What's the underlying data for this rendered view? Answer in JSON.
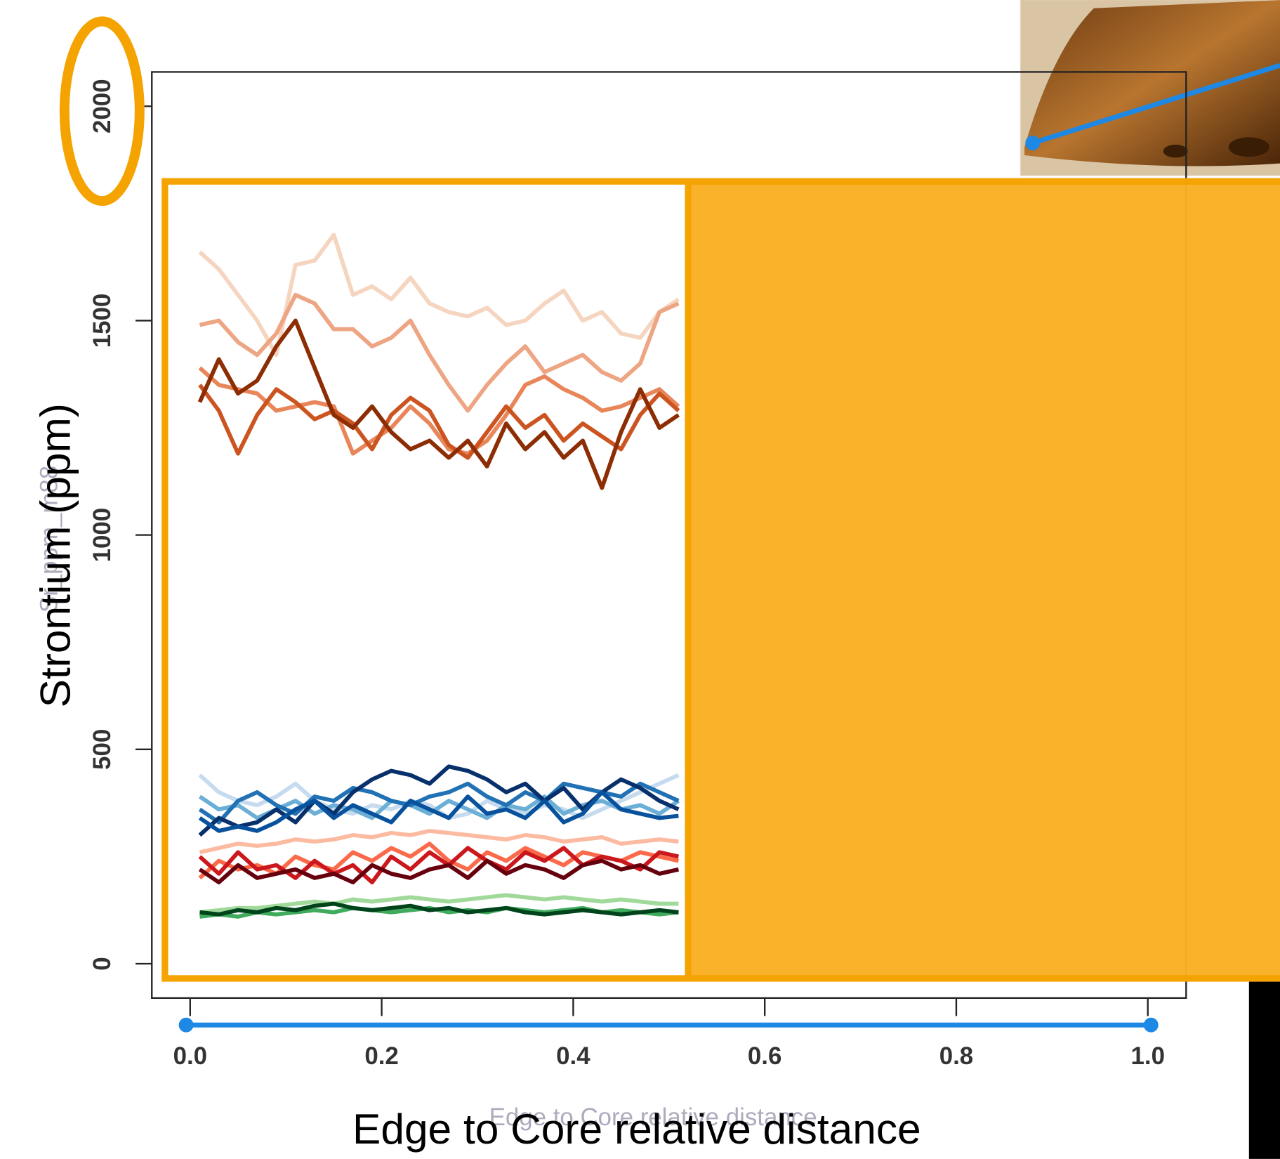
{
  "chart_data": {
    "type": "line",
    "xlabel": "Edge to Core relative distance",
    "ylabel": "Strontium (ppm)",
    "annotations": [
      "Sr_ppm_m88",
      "Edge to Core relative distance"
    ],
    "xlim": [
      -0.04,
      1.04
    ],
    "ylim": [
      -80,
      2080
    ],
    "xticks": [
      {
        "value": 0,
        "label": "0.0"
      },
      0.2,
      0.4,
      0.6,
      0.8,
      {
        "value": 1,
        "label": "1.0"
      }
    ],
    "yticks": [
      0,
      500,
      1000,
      1500,
      2000
    ],
    "x": [
      0.01,
      0.03,
      0.05,
      0.07,
      0.09,
      0.11,
      0.13,
      0.15,
      0.17,
      0.19,
      0.21,
      0.23,
      0.25,
      0.27,
      0.29,
      0.31,
      0.33,
      0.35,
      0.37,
      0.39,
      0.41,
      0.43,
      0.45,
      0.47,
      0.49,
      0.51
    ],
    "series": [
      {
        "color": "#f6d5c0",
        "values": [
          1660,
          1620,
          1560,
          1500,
          1420,
          1630,
          1640,
          1700,
          1560,
          1580,
          1550,
          1600,
          1540,
          1520,
          1510,
          1530,
          1490,
          1500,
          1540,
          1570,
          1500,
          1520,
          1470,
          1460,
          1520,
          1550
        ]
      },
      {
        "color": "#eea583",
        "values": [
          1490,
          1500,
          1450,
          1420,
          1470,
          1560,
          1540,
          1480,
          1480,
          1440,
          1460,
          1500,
          1420,
          1350,
          1290,
          1350,
          1400,
          1440,
          1380,
          1400,
          1420,
          1380,
          1360,
          1400,
          1520,
          1540
        ]
      },
      {
        "color": "#e8865a",
        "values": [
          1390,
          1350,
          1340,
          1330,
          1290,
          1300,
          1310,
          1300,
          1190,
          1220,
          1250,
          1300,
          1260,
          1200,
          1190,
          1220,
          1280,
          1350,
          1370,
          1340,
          1320,
          1290,
          1300,
          1320,
          1340,
          1300
        ]
      },
      {
        "color": "#cc5420",
        "values": [
          1350,
          1290,
          1190,
          1280,
          1340,
          1310,
          1270,
          1290,
          1260,
          1200,
          1280,
          1320,
          1290,
          1210,
          1180,
          1240,
          1300,
          1250,
          1280,
          1220,
          1260,
          1230,
          1200,
          1280,
          1330,
          1290
        ]
      },
      {
        "color": "#8c2d04",
        "values": [
          1310,
          1410,
          1330,
          1360,
          1440,
          1500,
          1390,
          1280,
          1250,
          1300,
          1240,
          1200,
          1220,
          1180,
          1220,
          1160,
          1260,
          1200,
          1240,
          1180,
          1220,
          1110,
          1240,
          1340,
          1250,
          1280
        ]
      },
      {
        "color": "#c6dbef",
        "values": [
          440,
          400,
          380,
          370,
          390,
          420,
          380,
          360,
          350,
          370,
          360,
          380,
          370,
          340,
          350,
          380,
          360,
          350,
          370,
          360,
          340,
          360,
          380,
          400,
          420,
          440
        ]
      },
      {
        "color": "#6baed6",
        "values": [
          390,
          360,
          370,
          340,
          360,
          380,
          350,
          370,
          360,
          340,
          380,
          370,
          350,
          380,
          360,
          340,
          370,
          360,
          390,
          350,
          370,
          380,
          360,
          370,
          350,
          380
        ]
      },
      {
        "color": "#2171b5",
        "values": [
          360,
          330,
          380,
          400,
          370,
          350,
          390,
          380,
          410,
          400,
          380,
          370,
          390,
          400,
          420,
          390,
          370,
          400,
          380,
          420,
          410,
          400,
          390,
          420,
          400,
          380
        ]
      },
      {
        "color": "#08306b",
        "values": [
          300,
          340,
          320,
          330,
          360,
          330,
          380,
          350,
          400,
          430,
          450,
          440,
          420,
          460,
          450,
          430,
          400,
          420,
          380,
          410,
          360,
          400,
          430,
          410,
          380,
          360
        ]
      },
      {
        "color": "#08519c",
        "values": [
          340,
          310,
          320,
          310,
          330,
          360,
          380,
          340,
          370,
          350,
          330,
          380,
          360,
          340,
          390,
          350,
          360,
          340,
          380,
          330,
          350,
          400,
          360,
          350,
          340,
          345
        ]
      },
      {
        "color": "#fcbba1",
        "values": [
          260,
          270,
          280,
          275,
          280,
          290,
          285,
          290,
          300,
          295,
          305,
          300,
          310,
          305,
          300,
          295,
          290,
          300,
          295,
          285,
          290,
          295,
          280,
          285,
          290,
          285
        ]
      },
      {
        "color": "#fb6a4a",
        "values": [
          200,
          240,
          220,
          230,
          210,
          250,
          230,
          220,
          260,
          240,
          270,
          250,
          280,
          240,
          220,
          260,
          240,
          270,
          250,
          230,
          260,
          250,
          240,
          260,
          250,
          240
        ]
      },
      {
        "color": "#cb181d",
        "values": [
          250,
          210,
          260,
          220,
          230,
          200,
          240,
          210,
          230,
          190,
          250,
          220,
          260,
          230,
          270,
          240,
          220,
          260,
          240,
          270,
          230,
          250,
          240,
          220,
          260,
          250
        ]
      },
      {
        "color": "#67000d",
        "values": [
          220,
          190,
          230,
          200,
          210,
          220,
          200,
          210,
          190,
          230,
          210,
          200,
          220,
          230,
          200,
          240,
          210,
          230,
          220,
          200,
          230,
          240,
          220,
          230,
          210,
          220
        ]
      },
      {
        "color": "#a1d99b",
        "values": [
          120,
          125,
          130,
          130,
          135,
          140,
          145,
          140,
          150,
          145,
          150,
          155,
          150,
          145,
          150,
          155,
          160,
          155,
          150,
          155,
          150,
          145,
          150,
          145,
          140,
          140
        ]
      },
      {
        "color": "#41ab5d",
        "values": [
          110,
          115,
          110,
          120,
          115,
          120,
          125,
          120,
          130,
          125,
          120,
          125,
          130,
          120,
          125,
          120,
          130,
          125,
          120,
          125,
          130,
          120,
          125,
          120,
          115,
          120
        ]
      },
      {
        "color": "#00441b",
        "values": [
          120,
          115,
          125,
          120,
          130,
          125,
          135,
          140,
          130,
          125,
          130,
          135,
          125,
          130,
          120,
          125,
          130,
          120,
          115,
          120,
          125,
          120,
          115,
          120,
          125,
          120
        ]
      }
    ]
  }
}
